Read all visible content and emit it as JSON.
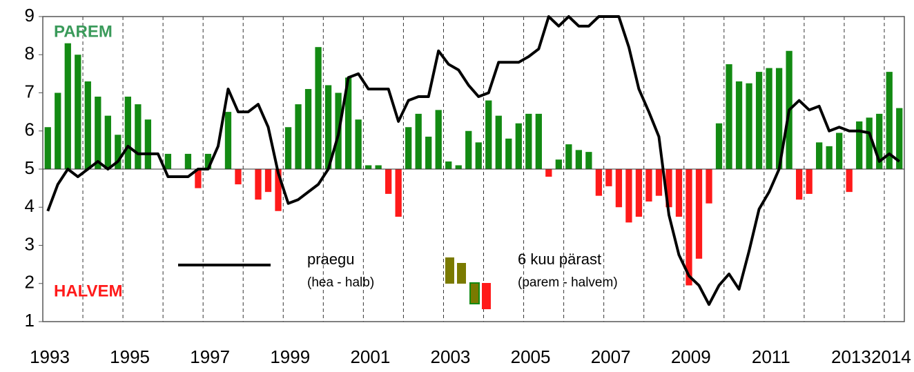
{
  "chart_data": {
    "type": "bar",
    "x": [
      1993.125,
      1993.375,
      1993.625,
      1993.875,
      1994.125,
      1994.375,
      1994.625,
      1994.875,
      1995.125,
      1995.375,
      1995.625,
      1995.875,
      1996.125,
      1996.375,
      1996.625,
      1996.875,
      1997.125,
      1997.375,
      1997.625,
      1997.875,
      1998.125,
      1998.375,
      1998.625,
      1998.875,
      1999.125,
      1999.375,
      1999.625,
      1999.875,
      2000.125,
      2000.375,
      2000.625,
      2000.875,
      2001.125,
      2001.375,
      2001.625,
      2001.875,
      2002.125,
      2002.375,
      2002.625,
      2002.875,
      2003.125,
      2003.375,
      2003.625,
      2003.875,
      2004.125,
      2004.375,
      2004.625,
      2004.875,
      2005.125,
      2005.375,
      2005.625,
      2005.875,
      2006.125,
      2006.375,
      2006.625,
      2006.875,
      2007.125,
      2007.375,
      2007.625,
      2007.875,
      2008.125,
      2008.375,
      2008.625,
      2008.875,
      2009.125,
      2009.375,
      2009.625,
      2009.875,
      2010.125,
      2010.375,
      2010.625,
      2010.875,
      2011.125,
      2011.375,
      2011.625,
      2011.875,
      2012.125,
      2012.375,
      2012.625,
      2012.875,
      2013.125,
      2013.375,
      2013.625,
      2013.875,
      2014.125,
      2014.375
    ],
    "series": [
      {
        "name": "praegu",
        "sublabel": "(hea - halb)",
        "type": "line",
        "color": "#000000",
        "values": [
          3.9,
          4.6,
          5.0,
          4.8,
          5.0,
          5.2,
          5.0,
          5.2,
          5.6,
          5.4,
          5.4,
          5.4,
          4.8,
          4.8,
          4.8,
          5.0,
          5.0,
          5.6,
          7.1,
          6.5,
          6.5,
          6.7,
          6.1,
          4.9,
          4.1,
          4.2,
          4.4,
          4.6,
          5.0,
          5.9,
          7.4,
          7.5,
          7.1,
          7.1,
          7.1,
          6.25,
          6.8,
          6.9,
          6.9,
          8.1,
          7.75,
          7.6,
          7.2,
          6.9,
          7.0,
          7.8,
          7.8,
          7.8,
          7.95,
          8.15,
          9.0,
          8.75,
          9.0,
          8.75,
          8.75,
          9.0,
          9.0,
          9.0,
          8.2,
          7.1,
          6.5,
          5.85,
          3.8,
          2.75,
          2.2,
          1.95,
          1.45,
          1.95,
          2.25,
          1.85,
          2.85,
          3.95,
          4.4,
          5.0,
          6.55,
          6.8,
          6.55,
          6.65,
          6.0,
          6.1,
          6.0,
          6.0,
          5.95,
          5.2,
          5.4,
          5.2
        ]
      },
      {
        "name": "6 kuu pärast",
        "sublabel": "(parem - halvem)",
        "type": "bar",
        "values": [
          6.1,
          7.0,
          8.3,
          8.0,
          7.3,
          6.9,
          6.4,
          5.9,
          6.9,
          6.7,
          6.3,
          null,
          5.4,
          null,
          5.4,
          4.5,
          5.4,
          null,
          6.5,
          4.6,
          null,
          4.2,
          4.4,
          3.9,
          6.1,
          6.7,
          7.1,
          8.2,
          7.2,
          7.0,
          7.4,
          6.3,
          5.1,
          5.1,
          4.35,
          3.75,
          6.1,
          6.45,
          5.85,
          6.55,
          5.2,
          5.1,
          6.0,
          5.7,
          6.8,
          6.4,
          5.8,
          6.2,
          6.45,
          6.45,
          4.8,
          5.25,
          5.65,
          5.5,
          5.45,
          4.3,
          4.55,
          4.0,
          3.6,
          3.75,
          4.15,
          4.3,
          4.0,
          3.75,
          1.95,
          2.65,
          4.1,
          6.2,
          7.75,
          7.3,
          7.25,
          7.55,
          7.65,
          7.65,
          8.1,
          4.2,
          4.35,
          5.7,
          5.6,
          5.95,
          4.4,
          6.25,
          6.35,
          6.45,
          7.55,
          6.6
        ]
      }
    ],
    "baseline": 5,
    "colors": {
      "positive": "#138a13",
      "negative": "#ff1a1a"
    },
    "annotations": {
      "top": "PAREM",
      "bottom": "HALVEM"
    },
    "xlim": [
      1993,
      2014.5
    ],
    "xticks": [
      1993,
      1995,
      1997,
      1999,
      2001,
      2003,
      2005,
      2007,
      2009,
      2011,
      2013,
      2014
    ],
    "ylim": [
      1,
      9
    ],
    "yticks": [
      1,
      2,
      3,
      4,
      5,
      6,
      7,
      8,
      9
    ]
  }
}
